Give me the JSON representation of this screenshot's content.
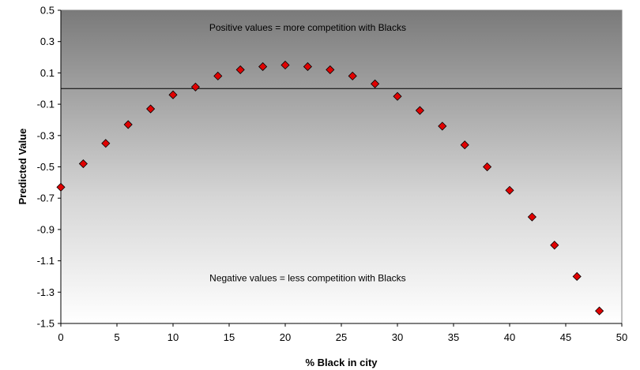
{
  "chart_data": {
    "type": "scatter",
    "title": "",
    "xlabel": "% Black in city",
    "ylabel": "Predicted Value",
    "xlim": [
      0,
      50
    ],
    "ylim": [
      -1.5,
      0.5
    ],
    "xticks": [
      0,
      5,
      10,
      15,
      20,
      25,
      30,
      35,
      40,
      45,
      50
    ],
    "yticks": [
      0.5,
      0.3,
      0.1,
      -0.1,
      -0.3,
      -0.5,
      -0.7,
      -0.9,
      -1.1,
      -1.3,
      -1.5
    ],
    "grid": false,
    "reference_line_y": 0,
    "background": "gradient from dark gray (top) to white (bottom)",
    "marker": {
      "shape": "diamond",
      "color": "#e00000",
      "edge_color": "#000000"
    },
    "annotations": [
      {
        "text": "Positive values = more competition with Blacks",
        "x": 22,
        "y": 0.37
      },
      {
        "text": "Negative values = less competition with Blacks",
        "x": 22,
        "y": -1.23
      }
    ],
    "series": [
      {
        "x": [
          0,
          2,
          4,
          6,
          8,
          10,
          12,
          14,
          16,
          18,
          20,
          22,
          24,
          26,
          28,
          30,
          32,
          34,
          36,
          38,
          40,
          42,
          44,
          46,
          48
        ],
        "y": [
          -0.63,
          -0.48,
          -0.35,
          -0.23,
          -0.13,
          -0.04,
          0.01,
          0.08,
          0.12,
          0.14,
          0.15,
          0.14,
          0.12,
          0.08,
          0.03,
          -0.05,
          -0.14,
          -0.24,
          -0.36,
          -0.5,
          -0.65,
          -0.82,
          -1.0,
          -1.2,
          -1.42
        ]
      }
    ]
  }
}
